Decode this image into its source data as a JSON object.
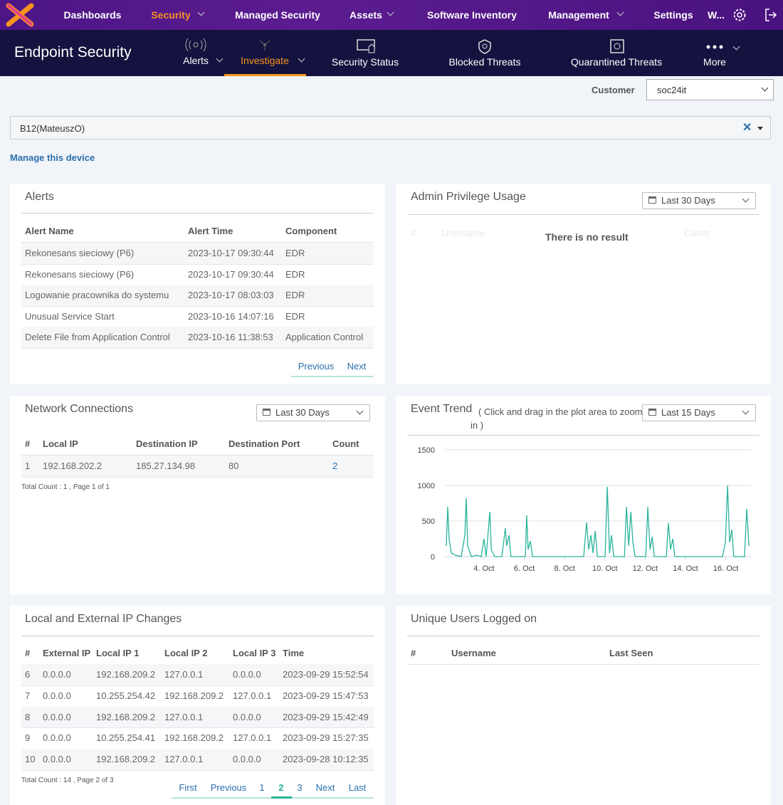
{
  "nav": {
    "items": [
      "Dashboards",
      "Security",
      "Managed Security",
      "Assets",
      "Software Inventory",
      "Management",
      "Settings",
      "W..."
    ]
  },
  "subnav": {
    "title": "Endpoint Security",
    "items": [
      "Alerts",
      "Investigate",
      "Security Status",
      "Blocked Threats",
      "Quarantined Threats",
      "More"
    ]
  },
  "customer": {
    "label": "Customer",
    "value": "soc24it"
  },
  "device": {
    "value": "B12(MateuszO)",
    "link": "Manage this device"
  },
  "alerts": {
    "title": "Alerts",
    "columns": [
      "Alert Name",
      "Alert Time",
      "Component"
    ],
    "rows": [
      [
        "Rekonesans sieciowy (P6)",
        "2023-10-17 09:30:44",
        "EDR"
      ],
      [
        "Rekonesans sieciowy (P6)",
        "2023-10-17 09:30:44",
        "EDR"
      ],
      [
        "Logowanie pracownika do systemu",
        "2023-10-17 08:03:03",
        "EDR"
      ],
      [
        "Unusual Service Start",
        "2023-10-16 14:07:16",
        "EDR"
      ],
      [
        "Delete File from Application Control",
        "2023-10-16 11:38:53",
        "Application Control"
      ]
    ],
    "pager": [
      "Previous",
      "Next"
    ]
  },
  "admin": {
    "title": "Admin Privilege Usage",
    "range": "Last 30 Days",
    "columns": [
      "#",
      "Username",
      "Count"
    ],
    "empty": "There is no result"
  },
  "network": {
    "title": "Network Connections",
    "range": "Last 30 Days",
    "columns": [
      "#",
      "Local IP",
      "Destination IP",
      "Destination Port",
      "Count"
    ],
    "rows": [
      [
        "1",
        "192.168.202.2",
        "185.27.134.98",
        "80",
        "2"
      ]
    ],
    "footer": "Total Count : 1 , Page 1 of 1"
  },
  "event_trend": {
    "title": "Event Trend",
    "subtitle": "( Click and drag in the plot area to zoom in )",
    "range": "Last 15 Days",
    "chart": {
      "type": "line",
      "color": "#2ab39b",
      "grid": true,
      "x": [
        2.13,
        2.2,
        2.27,
        2.38,
        2.59,
        2.87,
        3.05,
        3.12,
        3.19,
        3.37,
        3.65,
        3.86,
        4.0,
        4.11,
        4.29,
        4.36,
        4.53,
        4.89,
        5.06,
        5.13,
        5.24,
        5.34,
        5.49,
        6.05,
        6.12,
        6.19,
        6.3,
        6.41,
        8.95,
        9.09,
        9.2,
        9.31,
        9.41,
        9.52,
        9.63,
        10.01,
        10.12,
        10.23,
        10.33,
        10.44,
        10.97,
        11.07,
        11.18,
        11.29,
        11.39,
        11.5,
        12.03,
        12.13,
        12.24,
        12.35,
        12.45,
        13.05,
        13.15,
        13.26,
        13.37,
        13.47,
        15.84,
        15.98,
        16.09,
        16.19,
        16.3,
        16.4,
        16.93,
        17.04,
        17.15
      ],
      "values": [
        150,
        700,
        250,
        50,
        20,
        0,
        300,
        820,
        150,
        0,
        20,
        0,
        250,
        0,
        630,
        100,
        0,
        0,
        400,
        150,
        300,
        0,
        0,
        0,
        580,
        100,
        220,
        0,
        0,
        480,
        100,
        300,
        50,
        360,
        0,
        0,
        980,
        50,
        300,
        0,
        0,
        700,
        150,
        630,
        200,
        0,
        0,
        700,
        100,
        280,
        0,
        0,
        470,
        100,
        250,
        0,
        0,
        200,
        1000,
        200,
        380,
        0,
        0,
        670,
        150
      ],
      "xlim": [
        2.06,
        17.25
      ],
      "xticks": [
        {
          "value": 4,
          "label": "4. Oct"
        },
        {
          "value": 6,
          "label": "6. Oct"
        },
        {
          "value": 8,
          "label": "8. Oct"
        },
        {
          "value": 10,
          "label": "10. Oct"
        },
        {
          "value": 12,
          "label": "12. Oct"
        },
        {
          "value": 14,
          "label": "14. Oct"
        },
        {
          "value": 16,
          "label": "16. Oct"
        }
      ],
      "ylim": [
        0,
        1500
      ],
      "yticks": [
        0,
        500,
        1000,
        1500
      ]
    }
  },
  "ip_changes": {
    "title": "Local and External IP Changes",
    "columns": [
      "#",
      "External IP",
      "Local IP 1",
      "Local IP 2",
      "Local IP 3",
      "Time"
    ],
    "rows": [
      [
        "6",
        "0.0.0.0",
        "192.168.209.2",
        "127.0.0.1",
        "0.0.0.0",
        "2023-09-29 15:52:54"
      ],
      [
        "7",
        "0.0.0.0",
        "10.255.254.42",
        "192.168.209.2",
        "127.0.0.1",
        "2023-09-29 15:47:53"
      ],
      [
        "8",
        "0.0.0.0",
        "192.168.209.2",
        "127.0.0.1",
        "0.0.0.0",
        "2023-09-29 15:42:49"
      ],
      [
        "9",
        "0.0.0.0",
        "10.255.254.41",
        "192.168.209.2",
        "127.0.0.1",
        "2023-09-29 15:27:35"
      ],
      [
        "10",
        "0.0.0.0",
        "192.168.209.2",
        "127.0.0.1",
        "0.0.0.0",
        "2023-09-28 10:12:35"
      ]
    ],
    "footer": "Total Count : 14 , Page 2 of 3",
    "pager": [
      "First",
      "Previous",
      "1",
      "2",
      "3",
      "Next",
      "Last"
    ]
  },
  "users": {
    "title": "Unique Users Logged on",
    "columns": [
      "#",
      "Username",
      "Last Seen"
    ]
  }
}
